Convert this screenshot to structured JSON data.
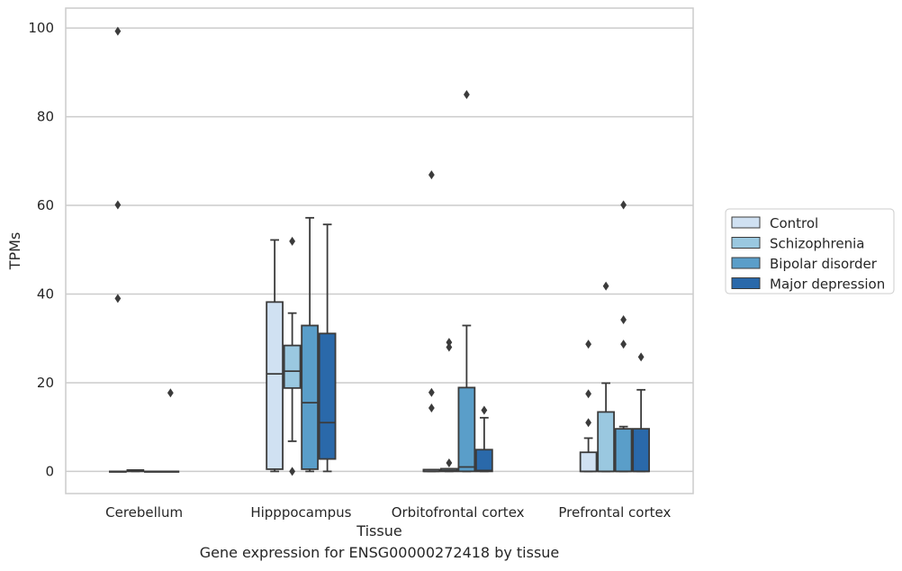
{
  "caption": "Gene expression for ENSG00000272418 by tissue",
  "chart_data": {
    "type": "box",
    "xlabel": "Tissue",
    "ylabel": "TPMs",
    "ylim": [
      -5,
      104.5
    ],
    "yticks": [
      0,
      20,
      40,
      60,
      80,
      100
    ],
    "grid": "horizontal",
    "legend_position": "right",
    "categories": [
      "Cerebellum",
      "Hipppocampus",
      "Orbitofrontal cortex",
      "Prefrontal cortex"
    ],
    "series": [
      {
        "name": "Control",
        "color": "#d0e1f2",
        "boxes": [
          {
            "q1": 0,
            "median": 0,
            "q3": 0,
            "whislo": 0,
            "whishi": 0,
            "fliers": [
              99.3,
              60.1,
              39.0
            ]
          },
          {
            "q1": 0.5,
            "median": 22.0,
            "q3": 38.2,
            "whislo": 0,
            "whishi": 52.2,
            "fliers": []
          },
          {
            "q1": 0,
            "median": 0,
            "q3": 0.4,
            "whislo": 0,
            "whishi": 0.4,
            "fliers": [
              66.9,
              17.8,
              14.3
            ]
          },
          {
            "q1": 0,
            "median": 0,
            "q3": 4.3,
            "whislo": 0,
            "whishi": 7.5,
            "fliers": [
              28.7,
              17.5,
              11.0
            ]
          }
        ]
      },
      {
        "name": "Schizophrenia",
        "color": "#9ac8e0",
        "boxes": [
          {
            "q1": 0,
            "median": 0.2,
            "q3": 0.3,
            "whislo": 0,
            "whishi": 0.3,
            "fliers": []
          },
          {
            "q1": 18.8,
            "median": 22.6,
            "q3": 28.4,
            "whislo": 6.8,
            "whishi": 35.7,
            "fliers": [
              51.9,
              0
            ]
          },
          {
            "q1": 0,
            "median": 0.2,
            "q3": 0.6,
            "whislo": 0,
            "whishi": 0.6,
            "fliers": [
              29.1,
              28.0,
              1.9
            ]
          },
          {
            "q1": 0,
            "median": 0,
            "q3": 13.4,
            "whislo": 0,
            "whishi": 19.9,
            "fliers": [
              41.8
            ]
          }
        ]
      },
      {
        "name": "Bipolar disorder",
        "color": "#5a9ec9",
        "boxes": [
          {
            "q1": 0,
            "median": 0,
            "q3": 0,
            "whislo": 0,
            "whishi": 0,
            "fliers": []
          },
          {
            "q1": 0.5,
            "median": 15.5,
            "q3": 32.9,
            "whislo": 0,
            "whishi": 57.2,
            "fliers": []
          },
          {
            "q1": 0,
            "median": 1.0,
            "q3": 18.9,
            "whislo": 0,
            "whishi": 32.9,
            "fliers": [
              85.0
            ]
          },
          {
            "q1": 0,
            "median": 0,
            "q3": 9.6,
            "whislo": 0,
            "whishi": 10.1,
            "fliers": [
              60.1,
              34.2,
              28.7
            ]
          }
        ]
      },
      {
        "name": "Major depression",
        "color": "#2a69aa",
        "boxes": [
          {
            "q1": 0,
            "median": 0,
            "q3": 0,
            "whislo": 0,
            "whishi": 0,
            "fliers": [
              17.7
            ]
          },
          {
            "q1": 2.8,
            "median": 11.0,
            "q3": 31.1,
            "whislo": 0,
            "whishi": 55.7,
            "fliers": []
          },
          {
            "q1": 0,
            "median": 0.2,
            "q3": 4.9,
            "whislo": 0,
            "whishi": 12.1,
            "fliers": [
              13.8
            ]
          },
          {
            "q1": 0,
            "median": 0,
            "q3": 9.6,
            "whislo": 0,
            "whishi": 18.4,
            "fliers": [
              25.8
            ]
          }
        ]
      }
    ]
  }
}
